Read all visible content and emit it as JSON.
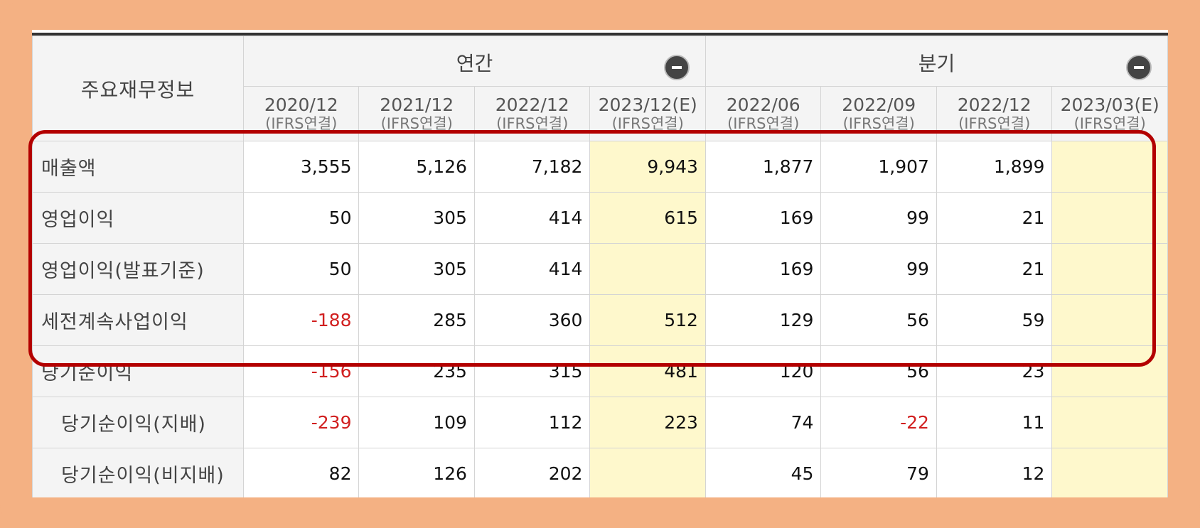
{
  "table": {
    "corner": "주요재무정보",
    "groups": [
      {
        "label": "연간"
      },
      {
        "label": "분기"
      }
    ],
    "periods": [
      {
        "date": "2020/12",
        "basis": "(IFRS연결)"
      },
      {
        "date": "2021/12",
        "basis": "(IFRS연결)"
      },
      {
        "date": "2022/12",
        "basis": "(IFRS연결)"
      },
      {
        "date": "2023/12(E)",
        "basis": "(IFRS연결)"
      },
      {
        "date": "2022/06",
        "basis": "(IFRS연결)"
      },
      {
        "date": "2022/09",
        "basis": "(IFRS연결)"
      },
      {
        "date": "2022/12",
        "basis": "(IFRS연결)"
      },
      {
        "date": "2023/03(E)",
        "basis": "(IFRS연결)"
      }
    ],
    "rows": [
      {
        "label": "매출액",
        "values": [
          "3,555",
          "5,126",
          "7,182",
          "9,943",
          "1,877",
          "1,907",
          "1,899",
          ""
        ]
      },
      {
        "label": "영업이익",
        "values": [
          "50",
          "305",
          "414",
          "615",
          "169",
          "99",
          "21",
          ""
        ]
      },
      {
        "label": "영업이익(발표기준)",
        "values": [
          "50",
          "305",
          "414",
          "",
          "169",
          "99",
          "21",
          ""
        ]
      },
      {
        "label": "세전계속사업이익",
        "values": [
          "-188",
          "285",
          "360",
          "512",
          "129",
          "56",
          "59",
          ""
        ]
      },
      {
        "label": "당기순이익",
        "values": [
          "-156",
          "235",
          "315",
          "481",
          "120",
          "56",
          "23",
          ""
        ]
      },
      {
        "label": "당기순이익(지배)",
        "values": [
          "-239",
          "109",
          "112",
          "223",
          "74",
          "-22",
          "11",
          ""
        ]
      },
      {
        "label": "당기순이익(비지배)",
        "values": [
          "82",
          "126",
          "202",
          "",
          "45",
          "79",
          "12",
          ""
        ]
      }
    ]
  },
  "colors": {
    "negative": "#d11f1f",
    "estimate_bg": "#fef8cc",
    "highlight_border": "#b30000",
    "frame_bg": "#f4b183"
  }
}
